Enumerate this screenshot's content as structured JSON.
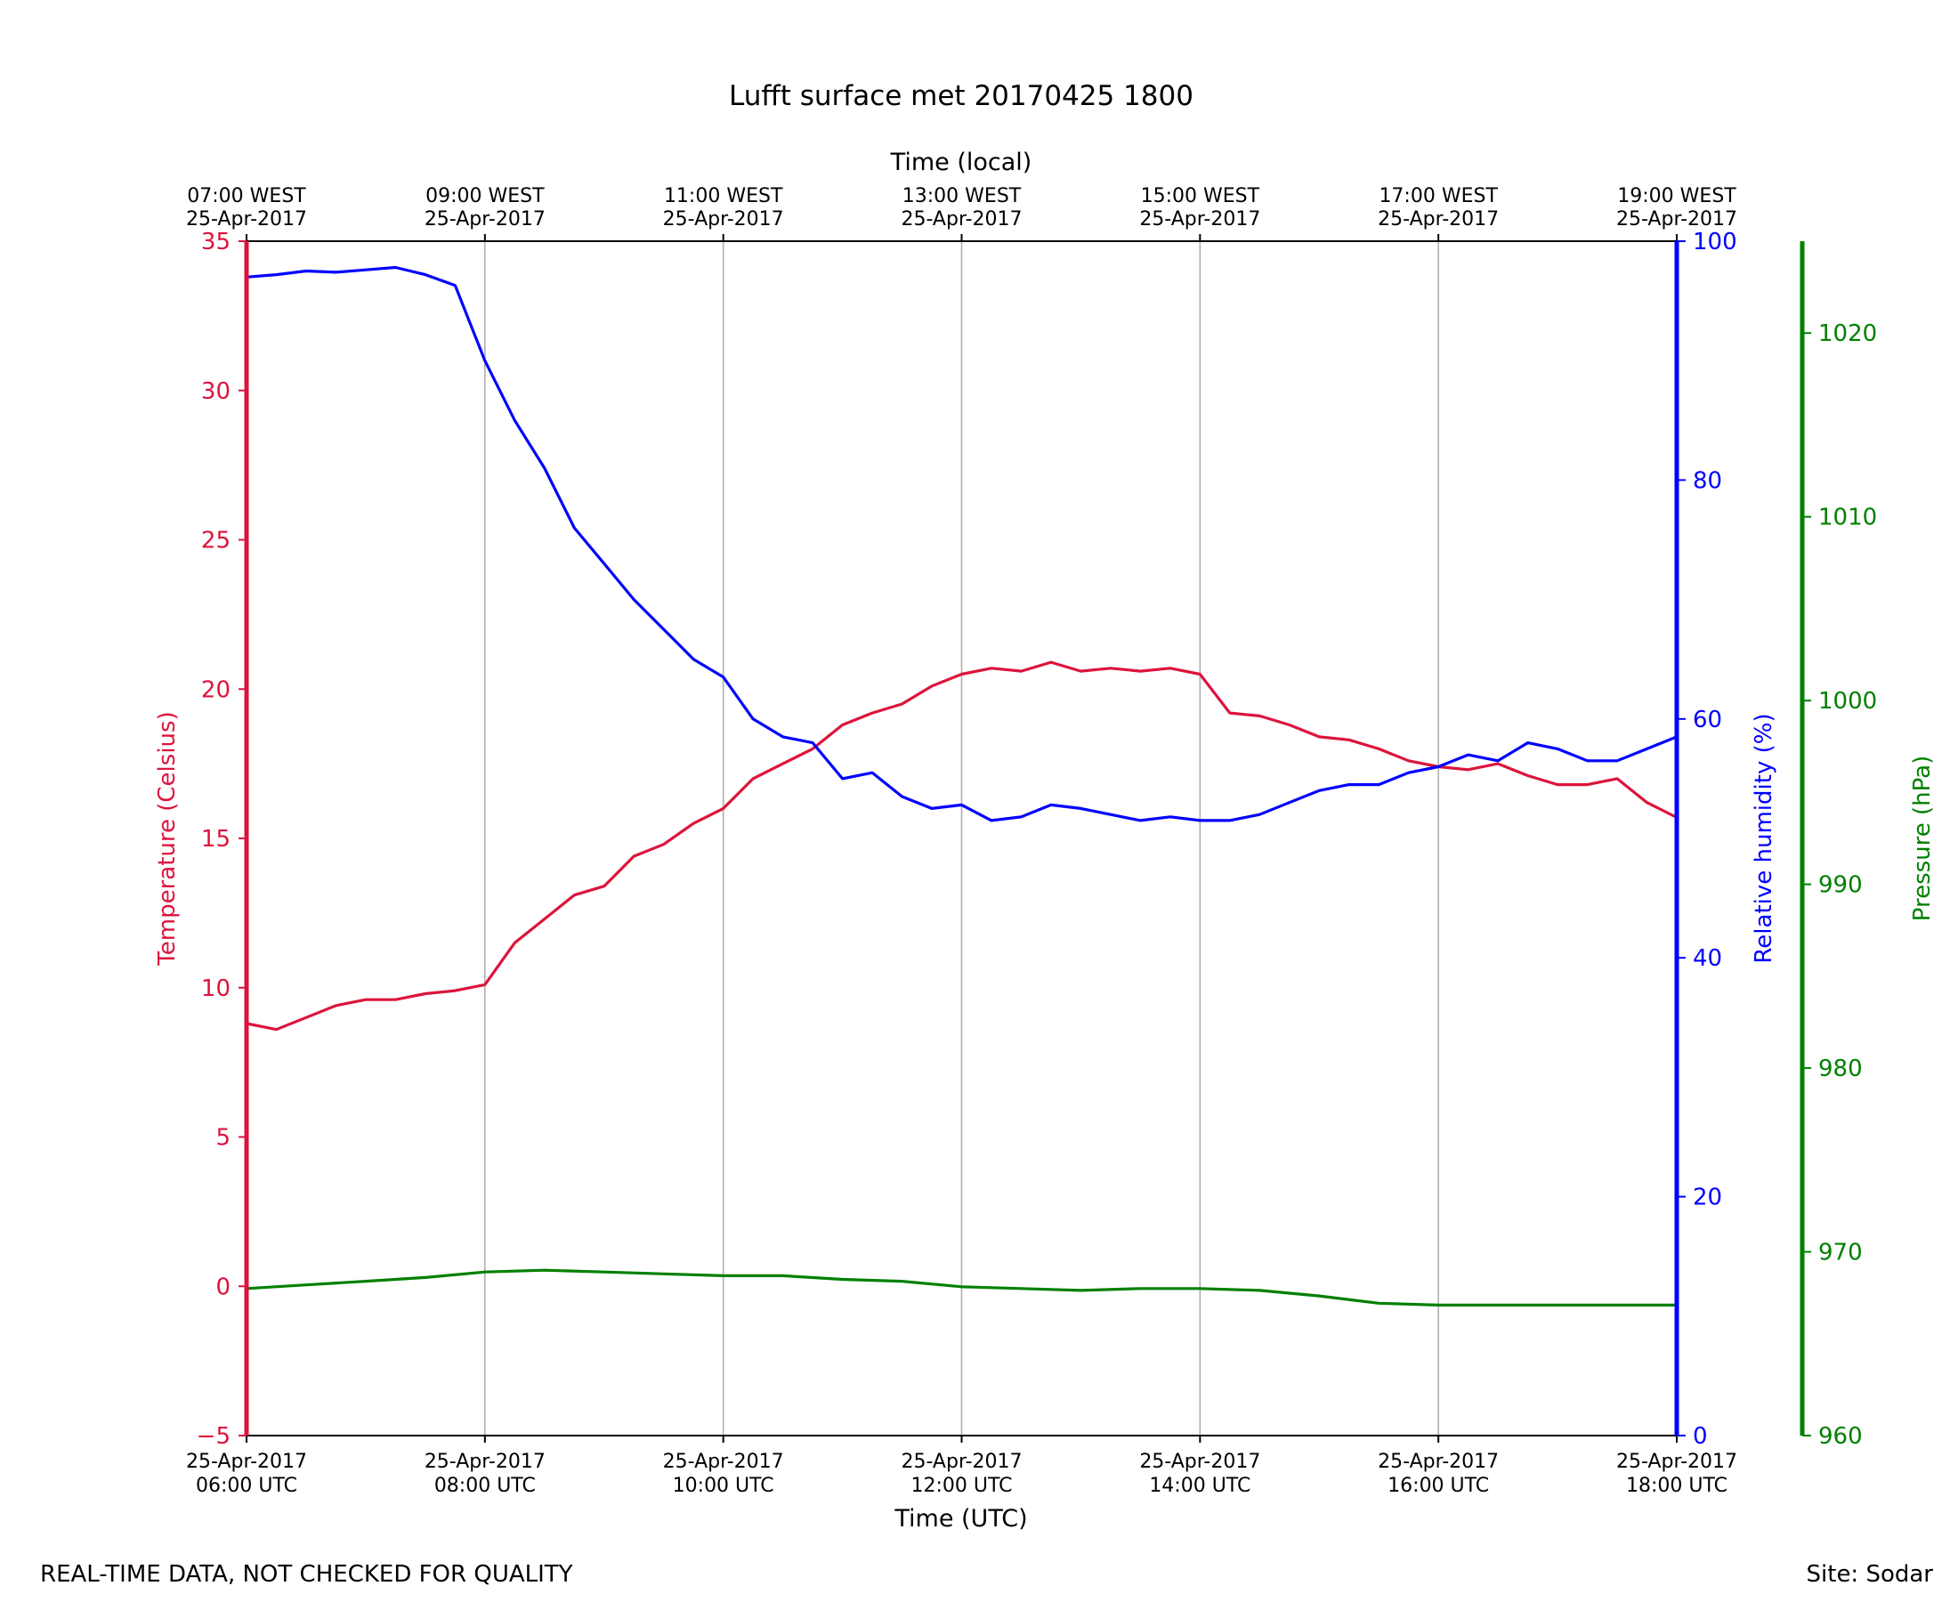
{
  "chart_data": {
    "type": "line",
    "title": "Lufft surface met 20170425 1800",
    "x_bottom_label": "Time (UTC)",
    "x_top_label": "Time (local)",
    "x_range_hours": [
      6,
      18
    ],
    "x_ticks_bottom": [
      {
        "h": 6,
        "l1": "25-Apr-2017",
        "l2": "06:00 UTC"
      },
      {
        "h": 8,
        "l1": "25-Apr-2017",
        "l2": "08:00 UTC"
      },
      {
        "h": 10,
        "l1": "25-Apr-2017",
        "l2": "10:00 UTC"
      },
      {
        "h": 12,
        "l1": "25-Apr-2017",
        "l2": "12:00 UTC"
      },
      {
        "h": 14,
        "l1": "25-Apr-2017",
        "l2": "14:00 UTC"
      },
      {
        "h": 16,
        "l1": "25-Apr-2017",
        "l2": "16:00 UTC"
      },
      {
        "h": 18,
        "l1": "25-Apr-2017",
        "l2": "18:00 UTC"
      }
    ],
    "x_ticks_top": [
      {
        "h": 6,
        "l1": "07:00 WEST",
        "l2": "25-Apr-2017"
      },
      {
        "h": 8,
        "l1": "09:00 WEST",
        "l2": "25-Apr-2017"
      },
      {
        "h": 10,
        "l1": "11:00 WEST",
        "l2": "25-Apr-2017"
      },
      {
        "h": 12,
        "l1": "13:00 WEST",
        "l2": "25-Apr-2017"
      },
      {
        "h": 14,
        "l1": "15:00 WEST",
        "l2": "25-Apr-2017"
      },
      {
        "h": 16,
        "l1": "17:00 WEST",
        "l2": "25-Apr-2017"
      },
      {
        "h": 18,
        "l1": "19:00 WEST",
        "l2": "25-Apr-2017"
      }
    ],
    "axes": {
      "temperature": {
        "label": "Temperature (Celsius)",
        "color": "#dc143c",
        "range": [
          -5,
          35
        ],
        "ticks": [
          -5,
          0,
          5,
          10,
          15,
          20,
          25,
          30,
          35
        ],
        "tick_labels": [
          "−5",
          "0",
          "5",
          "10",
          "15",
          "20",
          "25",
          "30",
          "35"
        ]
      },
      "humidity": {
        "label": "Relative humidity (%)",
        "color": "#0000ff",
        "range": [
          0,
          100
        ],
        "ticks": [
          0,
          20,
          40,
          60,
          80,
          100
        ],
        "tick_labels": [
          "0",
          "20",
          "40",
          "60",
          "80",
          "100"
        ]
      },
      "pressure": {
        "label": "Pressure (hPa)",
        "color": "#008000",
        "range": [
          960,
          1025
        ],
        "ticks": [
          960,
          970,
          980,
          990,
          1000,
          1010,
          1020
        ],
        "tick_labels": [
          "960",
          "970",
          "980",
          "990",
          "1000",
          "1010",
          "1020"
        ]
      }
    },
    "grid": "vertical",
    "series": [
      {
        "name": "Temperature (Celsius)",
        "axis": "temperature",
        "color": "#dc143c",
        "hours": [
          6.0,
          6.25,
          6.5,
          6.75,
          7.0,
          7.25,
          7.5,
          7.75,
          8.0,
          8.25,
          8.5,
          8.75,
          9.0,
          9.25,
          9.5,
          9.75,
          10.0,
          10.25,
          10.5,
          10.75,
          11.0,
          11.25,
          11.5,
          11.75,
          12.0,
          12.25,
          12.5,
          12.75,
          13.0,
          13.25,
          13.5,
          13.75,
          14.0,
          14.25,
          14.5,
          14.75,
          15.0,
          15.25,
          15.5,
          15.75,
          16.0,
          16.25,
          16.5,
          16.75,
          17.0,
          17.25,
          17.5,
          17.75,
          18.0
        ],
        "values": [
          8.8,
          8.6,
          9.0,
          9.4,
          9.6,
          9.6,
          9.8,
          9.9,
          10.1,
          11.5,
          12.3,
          13.1,
          13.4,
          14.4,
          14.8,
          15.5,
          16.0,
          17.0,
          17.5,
          18.0,
          18.8,
          19.2,
          19.5,
          20.1,
          20.5,
          20.7,
          20.6,
          20.9,
          20.6,
          20.7,
          20.6,
          20.7,
          20.5,
          19.2,
          19.1,
          18.8,
          18.4,
          18.3,
          18.0,
          17.6,
          17.4,
          17.3,
          17.5,
          17.1,
          16.8,
          16.8,
          17.0,
          16.2,
          15.7
        ]
      },
      {
        "name": "Relative humidity (%)",
        "axis": "humidity",
        "color": "#0000ff",
        "hours": [
          6.0,
          6.25,
          6.5,
          6.75,
          7.0,
          7.25,
          7.5,
          7.75,
          8.0,
          8.25,
          8.5,
          8.75,
          9.0,
          9.25,
          9.5,
          9.75,
          10.0,
          10.25,
          10.5,
          10.75,
          11.0,
          11.25,
          11.5,
          11.75,
          12.0,
          12.25,
          12.5,
          12.75,
          13.0,
          13.25,
          13.5,
          13.75,
          14.0,
          14.25,
          14.5,
          14.75,
          15.0,
          15.25,
          15.5,
          15.75,
          16.0,
          16.25,
          16.5,
          16.75,
          17.0,
          17.25,
          17.5,
          17.75,
          18.0
        ],
        "values": [
          97.0,
          97.2,
          97.5,
          97.4,
          97.6,
          97.8,
          97.2,
          96.3,
          90.0,
          85.0,
          81.0,
          76.0,
          73.0,
          70.0,
          67.5,
          65.0,
          63.5,
          60.0,
          58.5,
          58.0,
          55.0,
          55.5,
          53.5,
          52.5,
          52.8,
          51.5,
          51.8,
          52.8,
          52.5,
          52.0,
          51.5,
          51.8,
          51.5,
          51.5,
          52.0,
          53.0,
          54.0,
          54.5,
          54.5,
          55.5,
          56.0,
          57.0,
          56.5,
          58.0,
          57.5,
          56.5,
          56.5,
          57.5,
          58.5
        ]
      },
      {
        "name": "Pressure (hPa)",
        "axis": "pressure",
        "color": "#008000",
        "hours": [
          6.0,
          6.5,
          7.0,
          7.5,
          8.0,
          8.5,
          9.0,
          9.5,
          10.0,
          10.5,
          11.0,
          11.5,
          12.0,
          12.5,
          13.0,
          13.5,
          14.0,
          14.5,
          15.0,
          15.5,
          16.0,
          16.5,
          17.0,
          17.5,
          18.0
        ],
        "values": [
          968.0,
          968.2,
          968.4,
          968.6,
          968.9,
          969.0,
          968.9,
          968.8,
          968.7,
          968.7,
          968.5,
          968.4,
          968.1,
          968.0,
          967.9,
          968.0,
          968.0,
          967.9,
          967.6,
          967.2,
          967.1,
          967.1,
          967.1,
          967.1,
          967.1
        ]
      }
    ]
  },
  "footer": {
    "left": "REAL-TIME DATA, NOT CHECKED FOR QUALITY",
    "right": "Site: Sodar"
  }
}
